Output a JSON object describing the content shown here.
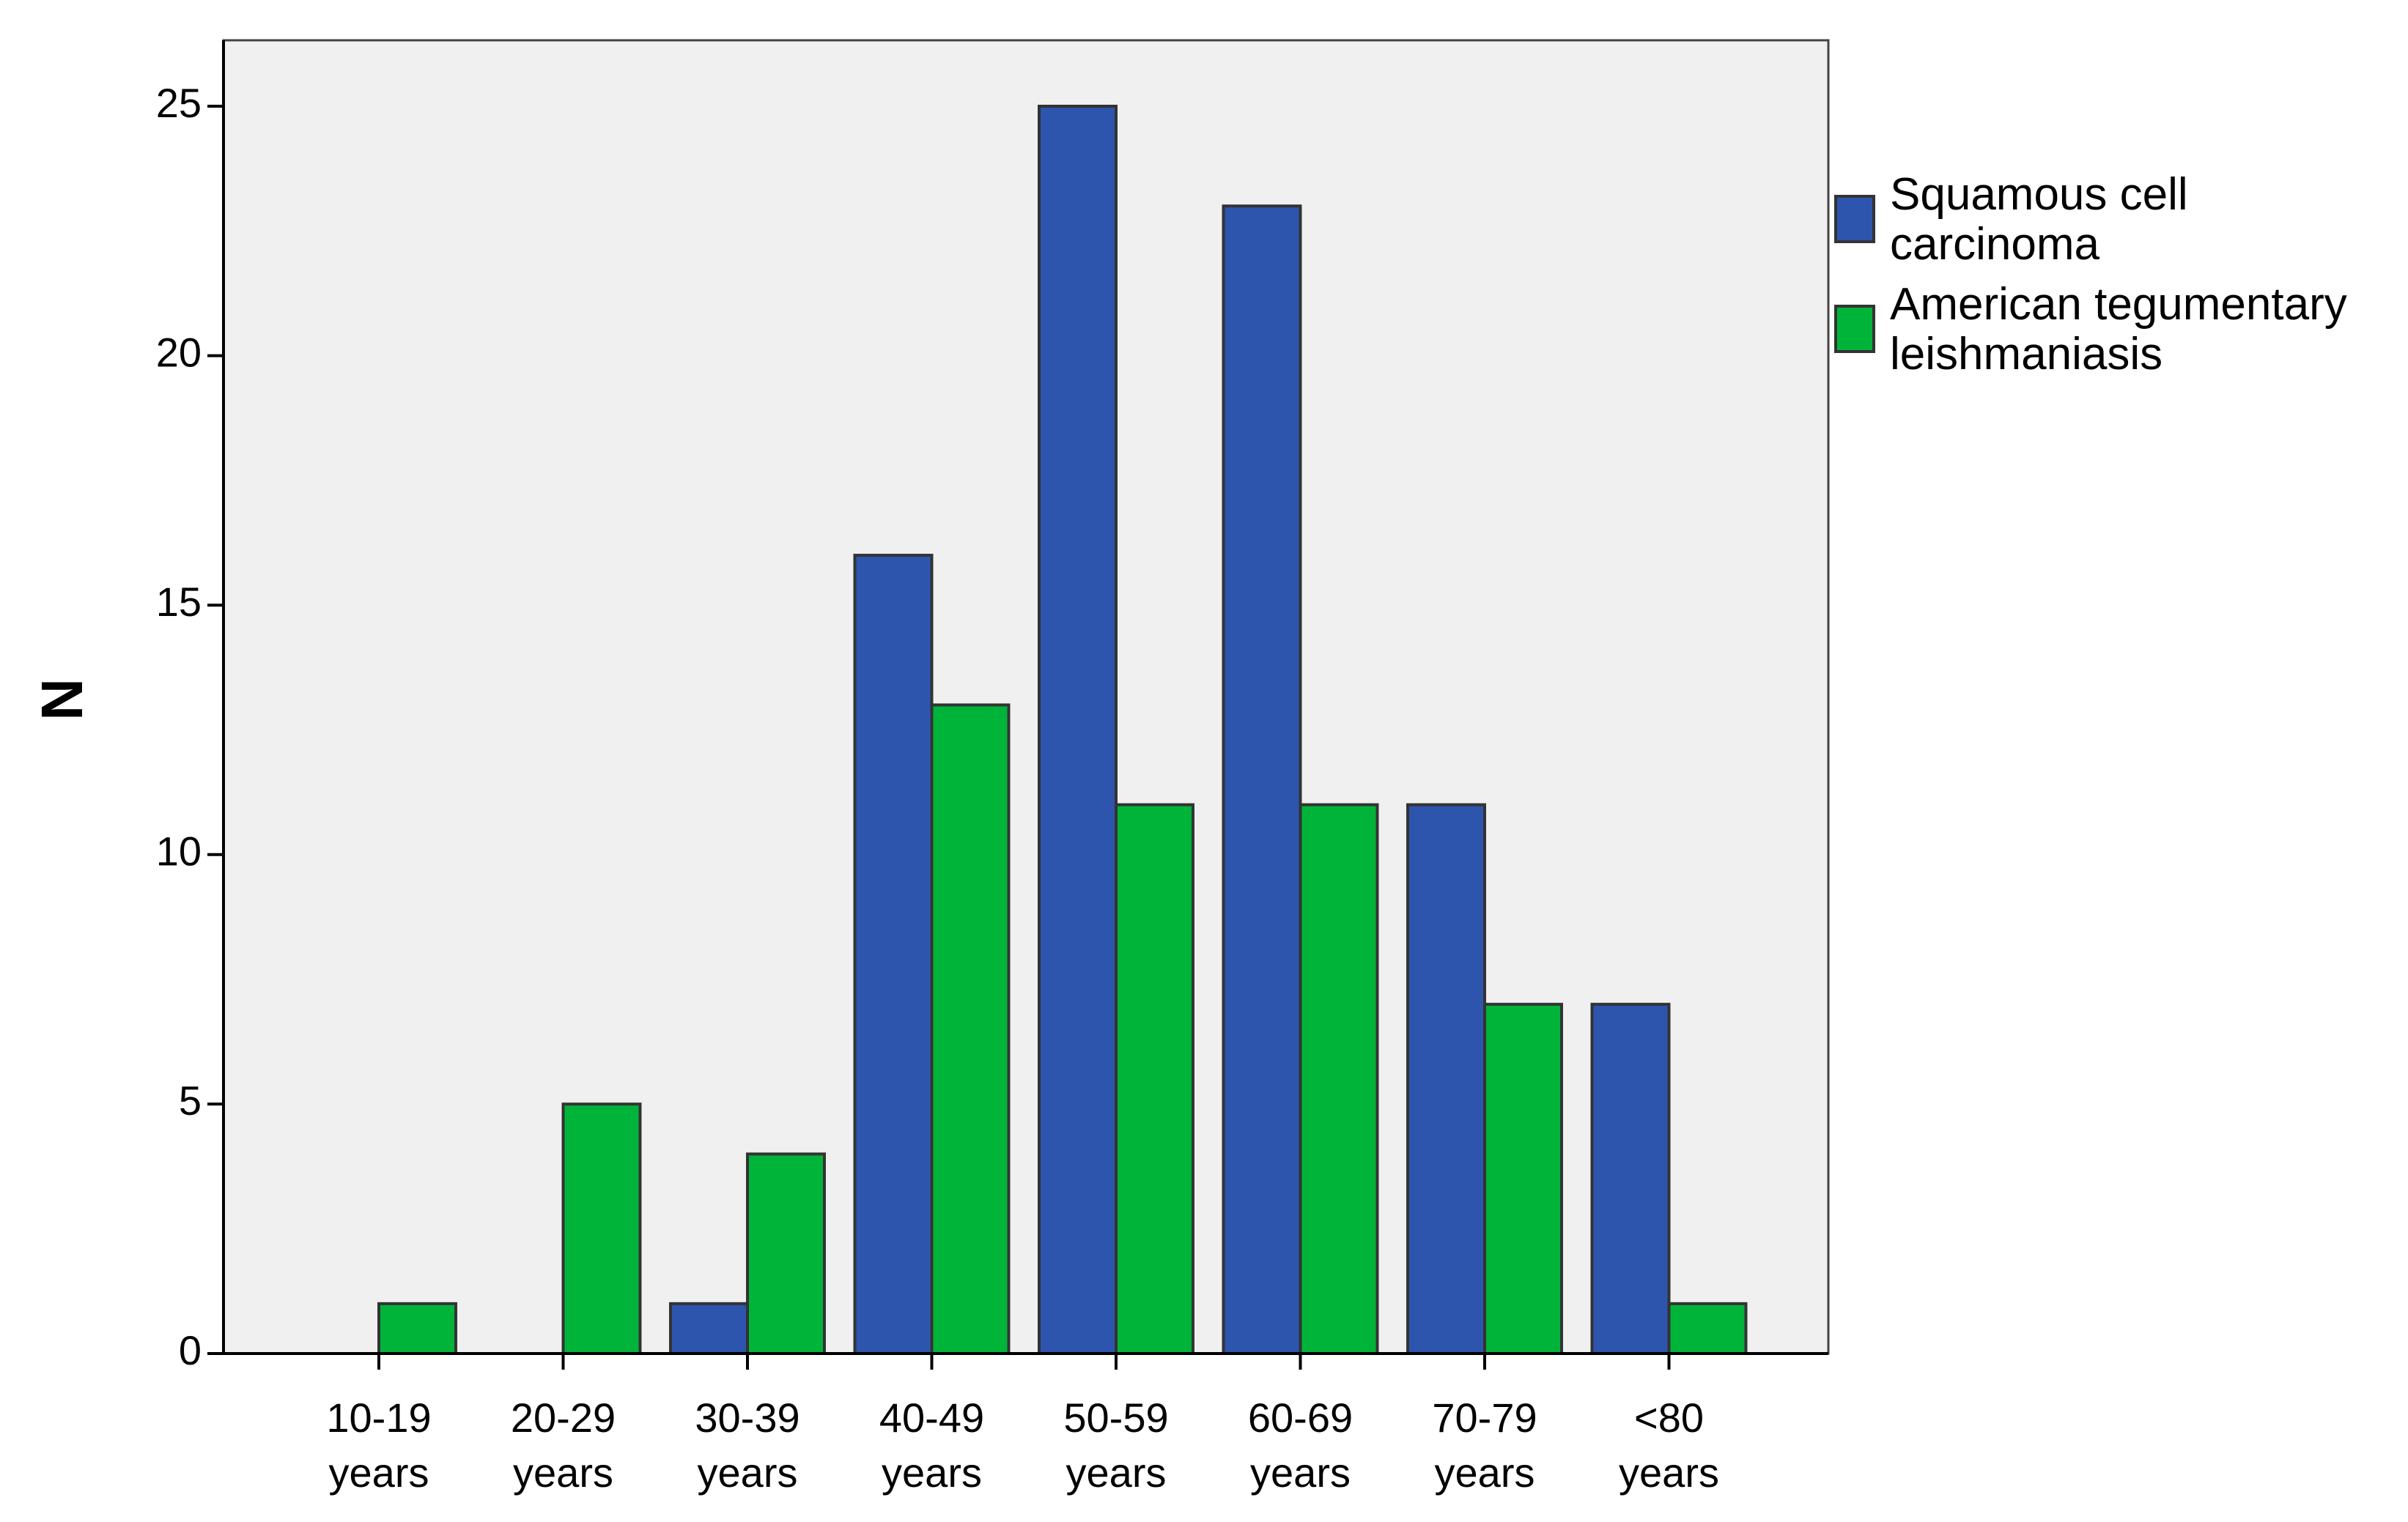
{
  "chart_data": {
    "type": "bar",
    "ylabel": "N",
    "xlabel": "",
    "ylim": [
      0,
      25
    ],
    "yticks": [
      0,
      5,
      10,
      15,
      20,
      25
    ],
    "categories": [
      [
        "10-19",
        "years"
      ],
      [
        "20-29",
        "years"
      ],
      [
        "30-39",
        "years"
      ],
      [
        "40-49",
        "years"
      ],
      [
        "50-59",
        "years"
      ],
      [
        "60-69",
        "years"
      ],
      [
        "70-79",
        "years"
      ],
      [
        "<80",
        "years"
      ]
    ],
    "series": [
      {
        "name": [
          "Squamous cell",
          "carcinoma"
        ],
        "color": "#2E55AE",
        "values": [
          0,
          0,
          1,
          16,
          25,
          23,
          11,
          7
        ]
      },
      {
        "name": [
          "American tegumentary",
          "leishmaniasis"
        ],
        "color": "#00B43A",
        "values": [
          1,
          5,
          4,
          13,
          11,
          11,
          7,
          1
        ]
      }
    ],
    "plot_background": "#F0F0F0",
    "bar_edge_color": "#333333",
    "legend_position": "right",
    "grid": false
  }
}
